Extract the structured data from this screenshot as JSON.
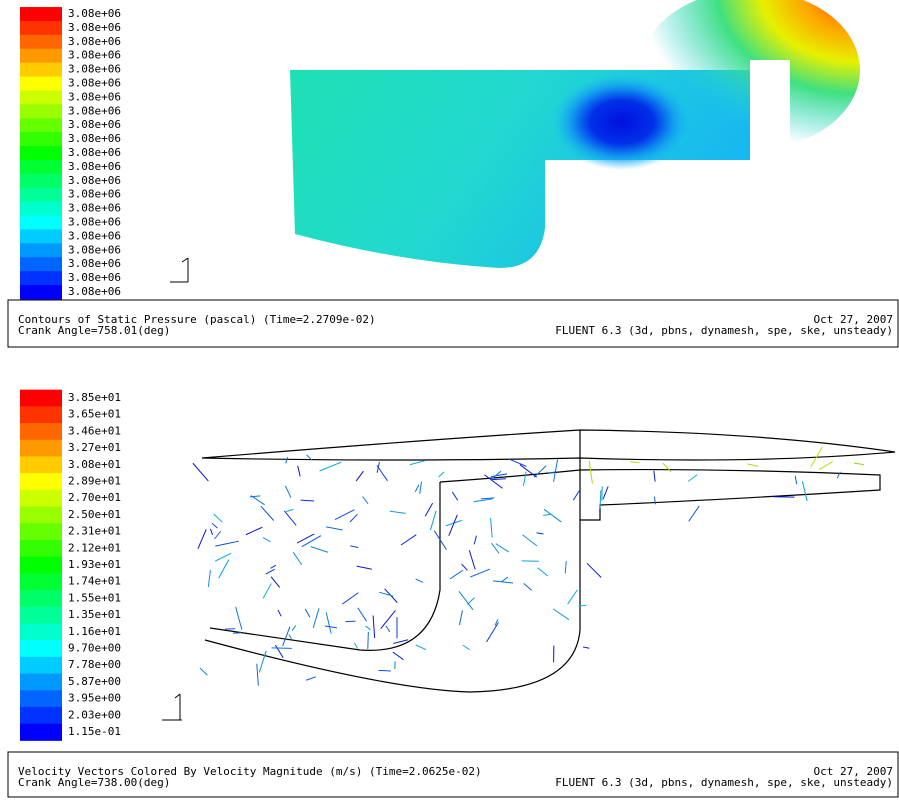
{
  "panels": [
    {
      "colorbar": [
        "3.08e+06",
        "3.08e+06",
        "3.08e+06",
        "3.08e+06",
        "3.08e+06",
        "3.08e+06",
        "3.08e+06",
        "3.08e+06",
        "3.08e+06",
        "3.08e+06",
        "3.08e+06",
        "3.08e+06",
        "3.08e+06",
        "3.08e+06",
        "3.08e+06",
        "3.08e+06",
        "3.08e+06",
        "3.08e+06",
        "3.08e+06",
        "3.08e+06",
        "3.08e+06"
      ],
      "caption": {
        "title": "Contours of Static Pressure (pascal)  (Time=2.2709e-02)",
        "date": "Oct 27, 2007",
        "angle": "Crank Angle=758.01(deg)",
        "solver": "FLUENT 6.3 (3d, pbns, dynamesh, spe, ske, unsteady)"
      }
    },
    {
      "colorbar": [
        "3.85e+01",
        "3.65e+01",
        "3.46e+01",
        "3.27e+01",
        "3.08e+01",
        "2.89e+01",
        "2.70e+01",
        "2.50e+01",
        "2.31e+01",
        "2.12e+01",
        "1.93e+01",
        "1.74e+01",
        "1.55e+01",
        "1.35e+01",
        "1.16e+01",
        "9.70e+00",
        "7.78e+00",
        "5.87e+00",
        "3.95e+00",
        "2.03e+00",
        "1.15e-01"
      ],
      "caption": {
        "title": "Velocity Vectors Colored By Velocity Magnitude (m/s)  (Time=2.0625e-02)",
        "date": "Oct 27, 2007",
        "angle": "Crank Angle=738.00(deg)",
        "solver": "FLUENT 6.3 (3d, pbns, dynamesh, spe, ske, unsteady)"
      }
    }
  ]
}
